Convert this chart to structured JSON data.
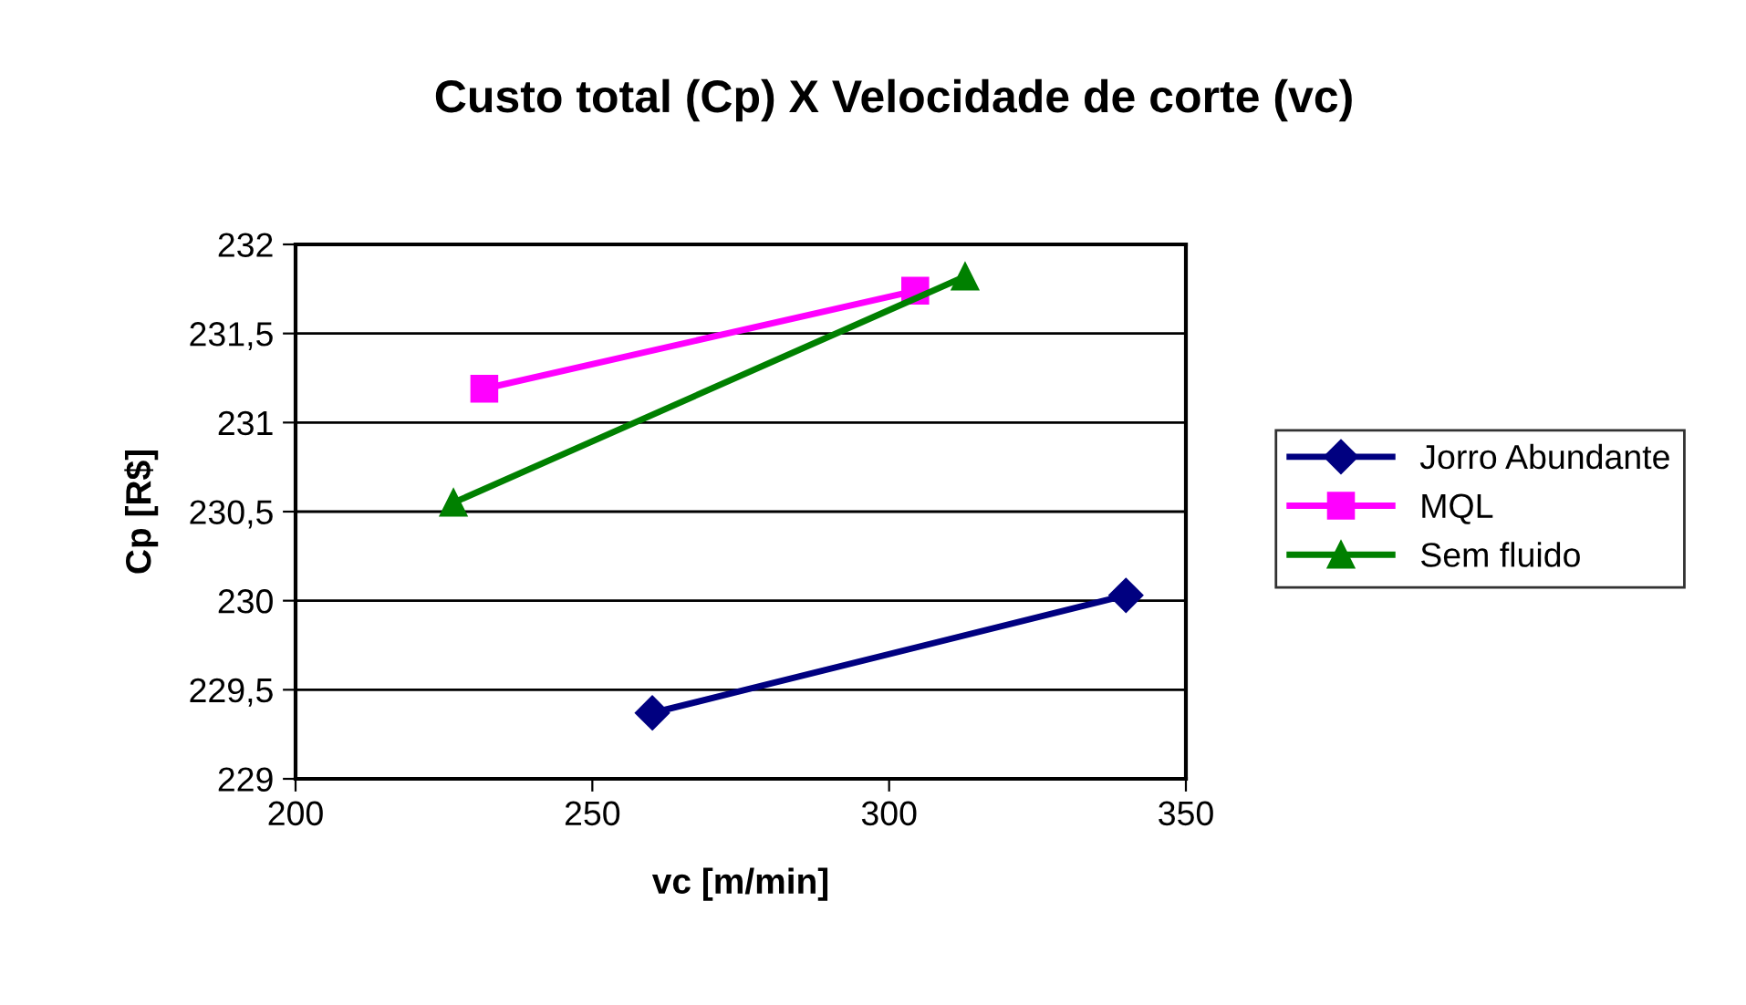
{
  "chart_data": {
    "type": "line",
    "title": "Custo total (Cp) X Velocidade de corte (vc)",
    "xlabel": "vc [m/min]",
    "ylabel": "Cp [R$]",
    "xlim": [
      200,
      350
    ],
    "xticks": [
      200,
      250,
      300,
      350
    ],
    "ylim": [
      229,
      232
    ],
    "yticks": [
      229,
      {
        "value": 229.5,
        "label": "229,5"
      },
      230,
      {
        "value": 230.5,
        "label": "230,5"
      },
      231,
      {
        "value": 231.5,
        "label": "231,5"
      },
      232
    ],
    "grid": "y",
    "legend": "right",
    "line_style": "solid",
    "series": [
      {
        "name": "Jorro Abundante",
        "color": "#000080",
        "marker": "diamond",
        "x": [
          260.1,
          339.9
        ],
        "values": [
          229.37,
          230.03
        ]
      },
      {
        "name": "MQL",
        "color": "#ff00ff",
        "marker": "square",
        "x": [
          231.8,
          304.4
        ],
        "values": [
          231.19,
          231.74
        ]
      },
      {
        "name": "Sem fluido",
        "color": "#008000",
        "marker": "triangle",
        "x": [
          226.6,
          312.8
        ],
        "values": [
          230.55,
          231.82
        ]
      }
    ]
  }
}
